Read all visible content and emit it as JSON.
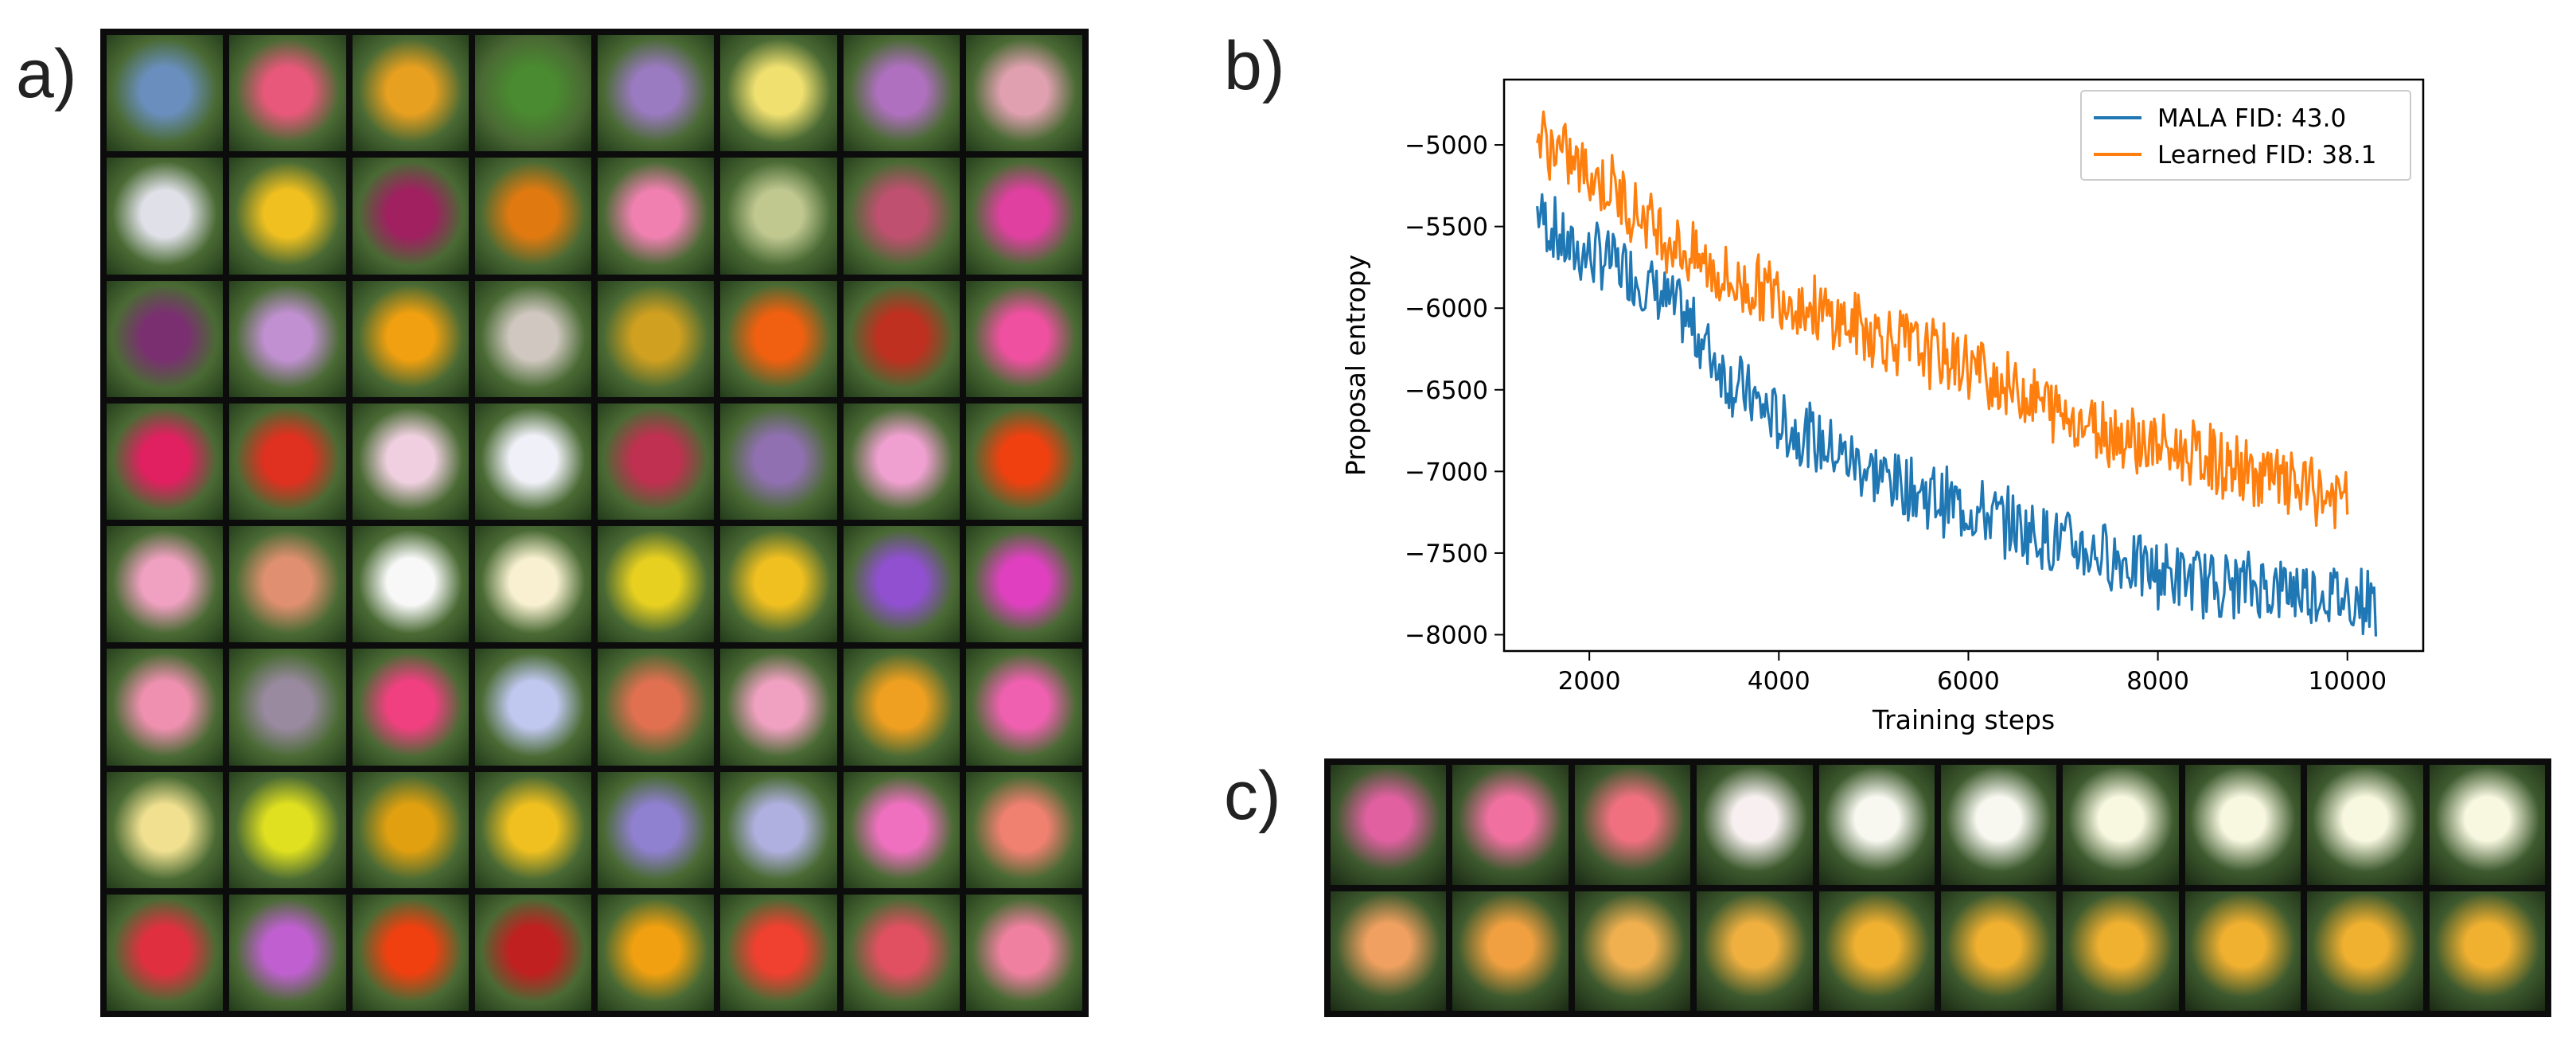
{
  "panels": {
    "a": "a)",
    "b": "b)",
    "c": "c)"
  },
  "grid_palette": [
    [
      "#6a8fbf",
      "#e8587a",
      "#e8a020",
      "#4a8a30",
      "#9a7ac0",
      "#f0e070",
      "#b070c0",
      "#e0a0b0"
    ],
    [
      "#e0e0e8",
      "#f0c020",
      "#a02060",
      "#e07a10",
      "#f080b0",
      "#c0c890",
      "#c05070",
      "#e040a0"
    ],
    [
      "#7a3070",
      "#c090d0",
      "#f0a010",
      "#d0c8c0",
      "#d0a020",
      "#f06010",
      "#c03020",
      "#f050a0"
    ],
    [
      "#e02060",
      "#e03020",
      "#f0d0e0",
      "#f0f0f8",
      "#c03050",
      "#9070b0",
      "#f0a0d0",
      "#f04010"
    ],
    [
      "#f0a0c0",
      "#e09070",
      "#f8f8f8",
      "#f8f0d0",
      "#e8d020",
      "#f0c020",
      "#9050d0",
      "#e040c0"
    ],
    [
      "#f090b0",
      "#9a8aa0",
      "#f04080",
      "#c0c8f0",
      "#e07050",
      "#f0a0c0",
      "#f0a020",
      "#f060b0"
    ],
    [
      "#f0e090",
      "#e0e020",
      "#e0a010",
      "#f0c020",
      "#9080d0",
      "#b0b0e0",
      "#f070c0",
      "#f08070"
    ],
    [
      "#e03040",
      "#c060d0",
      "#f04010",
      "#c02020",
      "#f0a010",
      "#f04030",
      "#e05060",
      "#f080a0"
    ]
  ],
  "strip_palette": [
    [
      "#e060a0",
      "#f070a0",
      "#f07080",
      "#f8f0f0",
      "#f8f8f0",
      "#f8f8f0",
      "#f8f8e0",
      "#f8f8e0",
      "#f8f8e0",
      "#f8f8e0"
    ],
    [
      "#f0a060",
      "#f0a040",
      "#f0b050",
      "#f0b040",
      "#f0b030",
      "#f0b030",
      "#f0b030",
      "#f0b030",
      "#f0b030",
      "#f0b030"
    ]
  ],
  "chart_data": {
    "type": "line",
    "xlabel": "Training steps",
    "ylabel": "Proposal entropy",
    "xlim": [
      1100,
      10800
    ],
    "ylim": [
      -8100,
      -4600
    ],
    "xticks": [
      2000,
      4000,
      6000,
      8000,
      10000
    ],
    "yticks": [
      -5000,
      -5500,
      -6000,
      -6500,
      -7000,
      -7500,
      -8000
    ],
    "xtick_labels": [
      "2000",
      "4000",
      "6000",
      "8000",
      "10000"
    ],
    "ytick_labels": [
      "−5000",
      "−5500",
      "−6000",
      "−6500",
      "−7000",
      "−7500",
      "−8000"
    ],
    "legend_placement": "top-right",
    "series": [
      {
        "name": "MALA FID: 43.0",
        "color": "#1f77b4",
        "x": [
          1450,
          1800,
          2200,
          2600,
          3000,
          3500,
          4000,
          4500,
          5000,
          5500,
          6000,
          6500,
          7000,
          7500,
          8000,
          8500,
          9000,
          9500,
          10000,
          10300
        ],
        "y": [
          -5400,
          -5650,
          -5700,
          -5850,
          -6050,
          -6450,
          -6700,
          -6850,
          -7000,
          -7130,
          -7230,
          -7330,
          -7440,
          -7520,
          -7620,
          -7680,
          -7700,
          -7720,
          -7770,
          -7800
        ]
      },
      {
        "name": "Learned FID: 38.1",
        "color": "#ff7f0e",
        "x": [
          1450,
          1800,
          2200,
          2600,
          3000,
          3500,
          4000,
          4500,
          5000,
          5500,
          6000,
          6500,
          7000,
          7500,
          8000,
          8500,
          9000,
          9500,
          10000
        ],
        "y": [
          -4950,
          -5100,
          -5250,
          -5450,
          -5650,
          -5850,
          -5900,
          -6050,
          -6150,
          -6250,
          -6350,
          -6500,
          -6650,
          -6750,
          -6850,
          -6920,
          -7020,
          -7100,
          -7200
        ]
      }
    ]
  }
}
